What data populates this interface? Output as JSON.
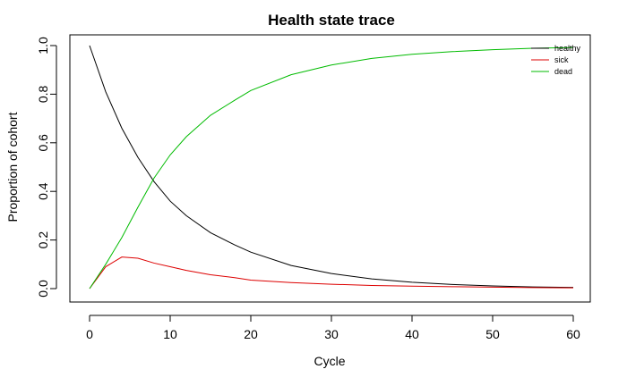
{
  "chart_data": {
    "type": "line",
    "title": "Health state trace",
    "xlabel": "Cycle",
    "ylabel": "Proportion of cohort",
    "xlim": [
      0,
      60
    ],
    "ylim": [
      0,
      1
    ],
    "xticks": [
      "0",
      "10",
      "20",
      "30",
      "40",
      "50",
      "60"
    ],
    "yticks": [
      "0.0",
      "0.2",
      "0.4",
      "0.6",
      "0.8",
      "1.0"
    ],
    "grid": false,
    "legend_position": "top-right",
    "x": [
      0,
      2,
      4,
      6,
      8,
      10,
      12,
      15,
      18,
      20,
      25,
      30,
      35,
      40,
      45,
      50,
      55,
      60
    ],
    "series": [
      {
        "name": "healthy",
        "color": "#000000",
        "values": [
          1.0,
          0.81,
          0.66,
          0.54,
          0.44,
          0.36,
          0.3,
          0.23,
          0.18,
          0.15,
          0.095,
          0.062,
          0.04,
          0.026,
          0.017,
          0.011,
          0.007,
          0.005
        ]
      },
      {
        "name": "sick",
        "color": "#dd0000",
        "values": [
          0.0,
          0.09,
          0.13,
          0.125,
          0.105,
          0.09,
          0.075,
          0.057,
          0.045,
          0.035,
          0.025,
          0.018,
          0.013,
          0.01,
          0.008,
          0.006,
          0.004,
          0.003
        ]
      },
      {
        "name": "dead",
        "color": "#00bb00",
        "values": [
          0.0,
          0.1,
          0.21,
          0.335,
          0.455,
          0.55,
          0.625,
          0.713,
          0.775,
          0.815,
          0.88,
          0.92,
          0.947,
          0.964,
          0.975,
          0.983,
          0.989,
          0.992
        ]
      }
    ]
  }
}
